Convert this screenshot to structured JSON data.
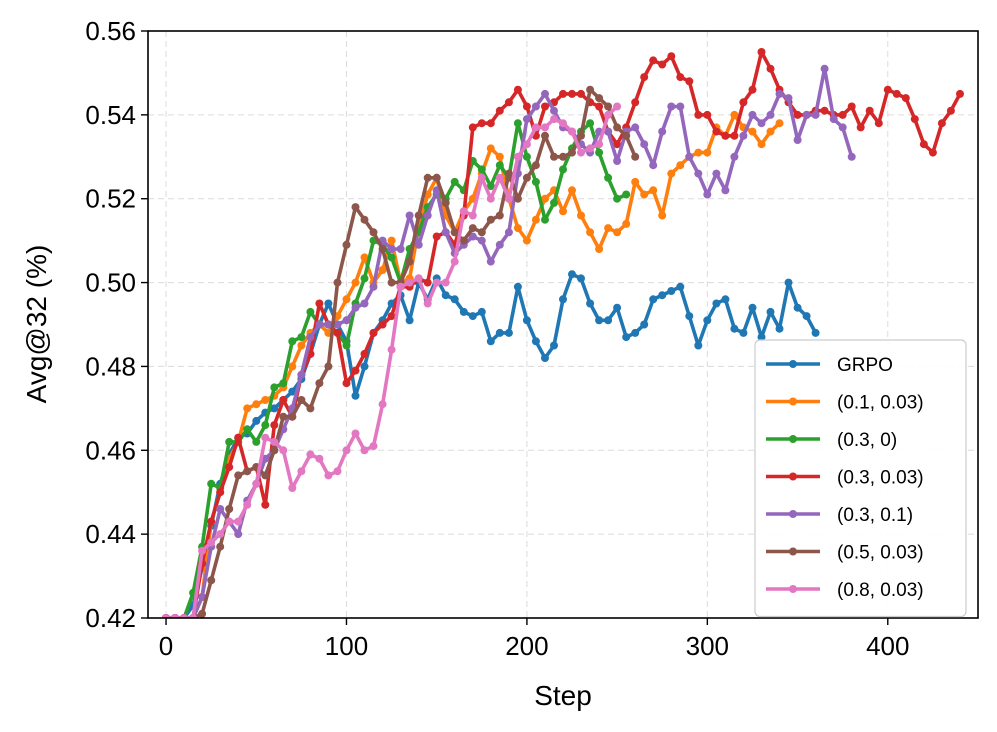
{
  "chart_data": {
    "type": "line",
    "title": "",
    "xlabel": "Step",
    "ylabel": "Avg@32 (%)",
    "xlim": [
      -10,
      450
    ],
    "ylim": [
      0.42,
      0.56
    ],
    "xticks": [
      0,
      100,
      200,
      300,
      400
    ],
    "yticks": [
      0.42,
      0.44,
      0.46,
      0.48,
      0.5,
      0.52,
      0.54,
      0.56
    ],
    "ytick_labels": [
      "0.42",
      "0.44",
      "0.46",
      "0.48",
      "0.50",
      "0.52",
      "0.54",
      "0.56"
    ],
    "grid": true,
    "legend_position": "lower-right",
    "series": [
      {
        "name": "GRPO",
        "color": "#1f77b4",
        "x": [
          0,
          5,
          10,
          15,
          20,
          25,
          30,
          35,
          40,
          45,
          50,
          55,
          60,
          65,
          70,
          75,
          80,
          85,
          90,
          95,
          100,
          105,
          110,
          115,
          120,
          125,
          130,
          135,
          140,
          145,
          150,
          155,
          160,
          165,
          170,
          175,
          180,
          185,
          190,
          195,
          200,
          205,
          210,
          215,
          220,
          225,
          230,
          235,
          240,
          245,
          250,
          255,
          260,
          265,
          270,
          275,
          280,
          285,
          290,
          295,
          300,
          305,
          310,
          315,
          320,
          325,
          330,
          335,
          340,
          345,
          350,
          355,
          360
        ],
        "y": [
          0.42,
          0.42,
          0.42,
          0.423,
          0.432,
          0.442,
          0.452,
          0.459,
          0.463,
          0.464,
          0.467,
          0.469,
          0.47,
          0.472,
          0.474,
          0.477,
          0.483,
          0.49,
          0.495,
          0.49,
          0.486,
          0.473,
          0.48,
          0.488,
          0.491,
          0.495,
          0.497,
          0.491,
          0.5,
          0.496,
          0.501,
          0.497,
          0.496,
          0.493,
          0.492,
          0.493,
          0.486,
          0.488,
          0.488,
          0.499,
          0.491,
          0.486,
          0.482,
          0.485,
          0.496,
          0.502,
          0.501,
          0.495,
          0.491,
          0.491,
          0.494,
          0.487,
          0.488,
          0.49,
          0.496,
          0.497,
          0.498,
          0.499,
          0.492,
          0.485,
          0.491,
          0.495,
          0.496,
          0.489,
          0.488,
          0.494,
          0.487,
          0.493,
          0.489,
          0.5,
          0.494,
          0.492,
          0.488
        ]
      },
      {
        "name": "(0.1, 0.03)",
        "color": "#ff7f0e",
        "x": [
          0,
          5,
          10,
          15,
          20,
          25,
          30,
          35,
          40,
          45,
          50,
          55,
          60,
          65,
          70,
          75,
          80,
          85,
          90,
          95,
          100,
          105,
          110,
          115,
          120,
          125,
          130,
          135,
          140,
          145,
          150,
          155,
          160,
          165,
          170,
          175,
          180,
          185,
          190,
          195,
          200,
          205,
          210,
          215,
          220,
          225,
          230,
          235,
          240,
          245,
          250,
          255,
          260,
          265,
          270,
          275,
          280,
          285,
          290,
          295,
          300,
          305,
          310,
          315,
          320,
          325,
          330,
          335,
          340
        ],
        "y": [
          0.42,
          0.42,
          0.42,
          0.42,
          0.425,
          0.443,
          0.45,
          0.458,
          0.462,
          0.47,
          0.471,
          0.472,
          0.473,
          0.475,
          0.48,
          0.485,
          0.488,
          0.49,
          0.488,
          0.492,
          0.496,
          0.5,
          0.506,
          0.5,
          0.503,
          0.51,
          0.5,
          0.501,
          0.513,
          0.521,
          0.525,
          0.516,
          0.512,
          0.517,
          0.52,
          0.526,
          0.532,
          0.53,
          0.52,
          0.513,
          0.51,
          0.515,
          0.52,
          0.522,
          0.517,
          0.522,
          0.516,
          0.512,
          0.508,
          0.513,
          0.512,
          0.514,
          0.524,
          0.521,
          0.522,
          0.516,
          0.526,
          0.528,
          0.53,
          0.531,
          0.531,
          0.537,
          0.535,
          0.54,
          0.537,
          0.536,
          0.533,
          0.536,
          0.538
        ]
      },
      {
        "name": "(0.3, 0)",
        "color": "#2ca02c",
        "x": [
          0,
          5,
          10,
          15,
          20,
          25,
          30,
          35,
          40,
          45,
          50,
          55,
          60,
          65,
          70,
          75,
          80,
          85,
          90,
          95,
          100,
          105,
          110,
          115,
          120,
          125,
          130,
          135,
          140,
          145,
          150,
          155,
          160,
          165,
          170,
          175,
          180,
          185,
          190,
          195,
          200,
          205,
          210,
          215,
          220,
          225,
          230,
          235,
          240,
          245,
          250,
          255
        ],
        "y": [
          0.42,
          0.42,
          0.42,
          0.426,
          0.437,
          0.452,
          0.451,
          0.462,
          0.462,
          0.465,
          0.462,
          0.466,
          0.475,
          0.476,
          0.486,
          0.487,
          0.493,
          0.49,
          0.49,
          0.488,
          0.485,
          0.495,
          0.501,
          0.51,
          0.509,
          0.506,
          0.5,
          0.508,
          0.512,
          0.518,
          0.521,
          0.52,
          0.524,
          0.522,
          0.529,
          0.527,
          0.523,
          0.528,
          0.525,
          0.538,
          0.53,
          0.524,
          0.515,
          0.519,
          0.527,
          0.532,
          0.536,
          0.538,
          0.531,
          0.525,
          0.52,
          0.521
        ]
      },
      {
        "name": "(0.3, 0.03)",
        "color": "#d62728",
        "x": [
          0,
          5,
          10,
          15,
          20,
          25,
          30,
          35,
          40,
          45,
          50,
          55,
          60,
          65,
          70,
          75,
          80,
          85,
          90,
          95,
          100,
          105,
          110,
          115,
          120,
          125,
          130,
          135,
          140,
          145,
          150,
          155,
          160,
          165,
          170,
          175,
          180,
          185,
          190,
          195,
          200,
          205,
          210,
          215,
          220,
          225,
          230,
          235,
          240,
          245,
          250,
          255,
          260,
          265,
          270,
          275,
          280,
          285,
          290,
          295,
          300,
          305,
          310,
          315,
          320,
          325,
          330,
          335,
          340,
          345,
          350,
          355,
          360,
          365,
          370,
          375,
          380,
          385,
          390,
          395,
          400,
          405,
          410,
          415,
          420,
          425,
          430,
          435,
          440
        ],
        "y": [
          0.42,
          0.42,
          0.42,
          0.42,
          0.433,
          0.443,
          0.45,
          0.456,
          0.463,
          0.455,
          0.456,
          0.447,
          0.466,
          0.472,
          0.468,
          0.478,
          0.483,
          0.495,
          0.49,
          0.488,
          0.476,
          0.479,
          0.483,
          0.488,
          0.49,
          0.492,
          0.499,
          0.499,
          0.501,
          0.5,
          0.511,
          0.512,
          0.509,
          0.516,
          0.537,
          0.538,
          0.538,
          0.541,
          0.543,
          0.546,
          0.542,
          0.535,
          0.542,
          0.543,
          0.545,
          0.545,
          0.545,
          0.543,
          0.542,
          0.536,
          0.533,
          0.537,
          0.543,
          0.549,
          0.553,
          0.552,
          0.554,
          0.549,
          0.548,
          0.54,
          0.54,
          0.536,
          0.535,
          0.535,
          0.543,
          0.546,
          0.555,
          0.551,
          0.546,
          0.543,
          0.54,
          0.54,
          0.541,
          0.541,
          0.54,
          0.54,
          0.542,
          0.537,
          0.541,
          0.538,
          0.546,
          0.545,
          0.544,
          0.539,
          0.533,
          0.531,
          0.538,
          0.541,
          0.545
        ]
      },
      {
        "name": "(0.3, 0.1)",
        "color": "#9467bd",
        "x": [
          0,
          5,
          10,
          15,
          20,
          25,
          30,
          35,
          40,
          45,
          50,
          55,
          60,
          65,
          70,
          75,
          80,
          85,
          90,
          95,
          100,
          105,
          110,
          115,
          120,
          125,
          130,
          135,
          140,
          145,
          150,
          155,
          160,
          165,
          170,
          175,
          180,
          185,
          190,
          195,
          200,
          205,
          210,
          215,
          220,
          225,
          230,
          235,
          240,
          245,
          250,
          255,
          260,
          265,
          270,
          275,
          280,
          285,
          290,
          295,
          300,
          305,
          310,
          315,
          320,
          325,
          330,
          335,
          340,
          345,
          350,
          355,
          360,
          365,
          370,
          375,
          380
        ],
        "y": [
          0.42,
          0.42,
          0.42,
          0.42,
          0.425,
          0.437,
          0.446,
          0.443,
          0.44,
          0.448,
          0.452,
          0.458,
          0.46,
          0.465,
          0.47,
          0.478,
          0.487,
          0.49,
          0.49,
          0.49,
          0.491,
          0.494,
          0.495,
          0.499,
          0.51,
          0.508,
          0.508,
          0.516,
          0.509,
          0.516,
          0.522,
          0.512,
          0.507,
          0.509,
          0.511,
          0.51,
          0.505,
          0.509,
          0.512,
          0.526,
          0.539,
          0.542,
          0.545,
          0.541,
          0.537,
          0.536,
          0.533,
          0.531,
          0.536,
          0.536,
          0.529,
          0.536,
          0.537,
          0.533,
          0.528,
          0.536,
          0.542,
          0.542,
          0.53,
          0.526,
          0.521,
          0.526,
          0.522,
          0.53,
          0.535,
          0.54,
          0.538,
          0.54,
          0.545,
          0.544,
          0.534,
          0.54,
          0.54,
          0.551,
          0.539,
          0.537,
          0.53
        ]
      },
      {
        "name": "(0.5, 0.03)",
        "color": "#8c564b",
        "x": [
          0,
          5,
          10,
          15,
          20,
          25,
          30,
          35,
          40,
          45,
          50,
          55,
          60,
          65,
          70,
          75,
          80,
          85,
          90,
          95,
          100,
          105,
          110,
          115,
          120,
          125,
          130,
          135,
          140,
          145,
          150,
          155,
          160,
          165,
          170,
          175,
          180,
          185,
          190,
          195,
          200,
          205,
          210,
          215,
          220,
          225,
          230,
          235,
          240,
          245,
          250,
          255,
          260
        ],
        "y": [
          0.42,
          0.42,
          0.42,
          0.42,
          0.421,
          0.429,
          0.437,
          0.446,
          0.454,
          0.455,
          0.456,
          0.454,
          0.46,
          0.468,
          0.468,
          0.472,
          0.47,
          0.476,
          0.48,
          0.5,
          0.509,
          0.518,
          0.515,
          0.512,
          0.508,
          0.5,
          0.5,
          0.505,
          0.516,
          0.525,
          0.525,
          0.519,
          0.512,
          0.51,
          0.513,
          0.512,
          0.515,
          0.516,
          0.526,
          0.52,
          0.525,
          0.528,
          0.535,
          0.53,
          0.53,
          0.531,
          0.535,
          0.546,
          0.544,
          0.542,
          0.537,
          0.535,
          0.53
        ]
      },
      {
        "name": "(0.8, 0.03)",
        "color": "#e377c2",
        "x": [
          0,
          5,
          10,
          15,
          20,
          25,
          30,
          35,
          40,
          45,
          50,
          55,
          60,
          65,
          70,
          75,
          80,
          85,
          90,
          95,
          100,
          105,
          110,
          115,
          120,
          125,
          130,
          135,
          140,
          145,
          150,
          155,
          160,
          165,
          170,
          175,
          180,
          185,
          190,
          195,
          200,
          205,
          210,
          215,
          220,
          225,
          230,
          235,
          240,
          245,
          250
        ],
        "y": [
          0.42,
          0.42,
          0.42,
          0.42,
          0.436,
          0.438,
          0.44,
          0.443,
          0.443,
          0.447,
          0.452,
          0.463,
          0.462,
          0.46,
          0.451,
          0.455,
          0.459,
          0.458,
          0.454,
          0.455,
          0.46,
          0.464,
          0.46,
          0.461,
          0.471,
          0.484,
          0.499,
          0.5,
          0.501,
          0.495,
          0.5,
          0.5,
          0.505,
          0.517,
          0.516,
          0.525,
          0.52,
          0.525,
          0.52,
          0.53,
          0.533,
          0.537,
          0.537,
          0.539,
          0.538,
          0.536,
          0.531,
          0.532,
          0.533,
          0.54,
          0.542
        ]
      }
    ]
  }
}
